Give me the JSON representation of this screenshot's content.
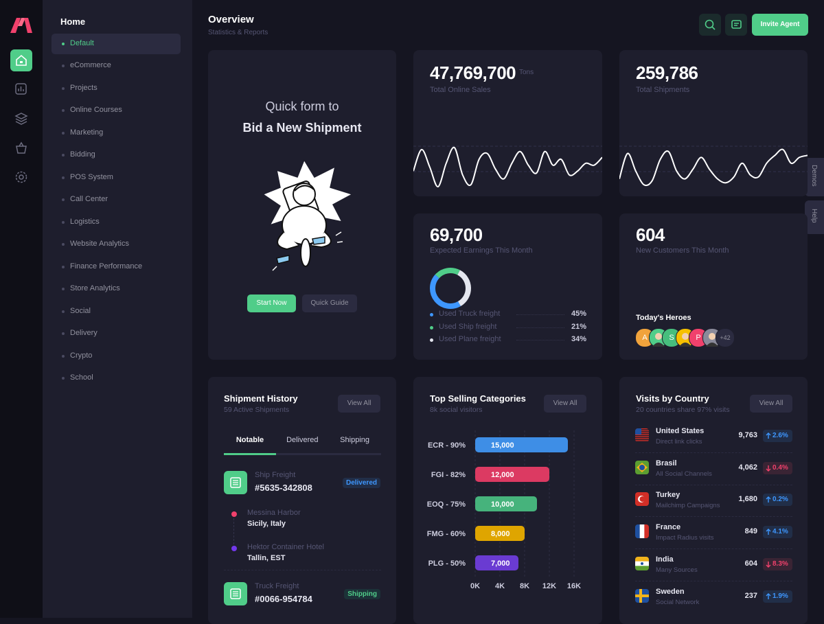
{
  "sidebar": {
    "title": "Home",
    "items": [
      "Default",
      "eCommerce",
      "Projects",
      "Online Courses",
      "Marketing",
      "Bidding",
      "POS System",
      "Call Center",
      "Logistics",
      "Website Analytics",
      "Finance Performance",
      "Store Analytics",
      "Social",
      "Delivery",
      "Crypto",
      "School"
    ]
  },
  "header": {
    "title": "Overview",
    "subtitle": "Statistics & Reports",
    "button": "Invite Agent"
  },
  "side_tabs": [
    "Demos",
    "Help"
  ],
  "quick_form": {
    "line1": "Quick form to",
    "line2": "Bid a New Shipment",
    "primary_button": "Start Now",
    "secondary_button": "Quick Guide"
  },
  "sales_card": {
    "value": "47,769,700",
    "unit": "Tons",
    "label": "Total Online Sales",
    "chart_data": {
      "type": "line",
      "values": [
        40,
        95,
        50,
        0,
        60,
        100,
        30,
        5,
        70,
        85,
        45,
        20,
        60,
        90,
        55,
        35,
        90,
        55,
        70,
        30,
        40,
        60,
        55,
        75
      ],
      "ylim": [
        0,
        100
      ],
      "color": "#ffffff"
    }
  },
  "shipments_card": {
    "value": "259,786",
    "label": "Total Shipments",
    "chart_data": {
      "type": "line",
      "values": [
        20,
        85,
        40,
        5,
        15,
        70,
        90,
        40,
        20,
        45,
        75,
        45,
        20,
        10,
        25,
        60,
        30,
        25,
        60,
        80,
        95,
        60,
        75,
        80
      ],
      "ylim": [
        0,
        100
      ],
      "color": "#ffffff"
    }
  },
  "earnings_card": {
    "value": "69,700",
    "label": "Expected Earnings This Month",
    "chart_data": {
      "type": "donut",
      "categories": [
        "Used Truck freight",
        "Used Ship freight",
        "Used Plane freight"
      ],
      "values": [
        45,
        21,
        34
      ],
      "value_labels": [
        "45%",
        "21%",
        "34%"
      ],
      "colors": [
        "#3e97ff",
        "#50cd89",
        "#e4e6ef"
      ]
    }
  },
  "customers_card": {
    "value": "604",
    "label": "New Customers This Month",
    "heroes_title": "Today's Heroes",
    "hero_initials": [
      "A",
      "S",
      "P"
    ],
    "more": "+42"
  },
  "shipment_history": {
    "title": "Shipment History",
    "subtitle": "59 Active Shipments",
    "button": "View All",
    "tabs": [
      "Notable",
      "Delivered",
      "Shipping"
    ],
    "items": [
      {
        "type": "Ship Freight",
        "id": "#5635-342808",
        "status": "Delivered",
        "stops": [
          {
            "place": "Messina Harbor",
            "city": "Sicily, Italy"
          },
          {
            "place": "Hektor Container Hotel",
            "city": "Tallin, EST"
          }
        ]
      },
      {
        "type": "Truck Freight",
        "id": "#0066-954784",
        "status": "Shipping"
      }
    ]
  },
  "top_selling": {
    "title": "Top Selling Categories",
    "subtitle": "8k social visitors",
    "button": "View All",
    "chart_data": {
      "type": "bar",
      "orientation": "horizontal",
      "categories": [
        "ECR - 90%",
        "FGI - 82%",
        "EOQ - 75%",
        "FMG - 60%",
        "PLG - 50%"
      ],
      "values": [
        15000,
        12000,
        10000,
        8000,
        7000
      ],
      "value_labels": [
        "15,000",
        "12,000",
        "10,000",
        "8,000",
        "7,000"
      ],
      "colors": [
        "#3e8ee6",
        "#dc3a62",
        "#46b37c",
        "#dfa500",
        "#6a3bd2"
      ],
      "xlim": [
        0,
        16000
      ],
      "xticks": [
        {
          "value": 0,
          "label": "0K"
        },
        {
          "value": 4000,
          "label": "4K"
        },
        {
          "value": 8000,
          "label": "8K"
        },
        {
          "value": 12000,
          "label": "12K"
        },
        {
          "value": 16000,
          "label": "16K"
        }
      ],
      "grid": true
    }
  },
  "visits": {
    "title": "Visits by Country",
    "subtitle": "20 countries share 97% visits",
    "button": "View All",
    "rows": [
      {
        "country": "United States",
        "source": "Direct link clicks",
        "visits": "9,763",
        "change": "2.6%",
        "trend": "up"
      },
      {
        "country": "Brasil",
        "source": "All Social Channels",
        "visits": "4,062",
        "change": "0.4%",
        "trend": "down"
      },
      {
        "country": "Turkey",
        "source": "Mailchimp Campaigns",
        "visits": "1,680",
        "change": "0.2%",
        "trend": "up"
      },
      {
        "country": "France",
        "source": "Impact Radius visits",
        "visits": "849",
        "change": "4.1%",
        "trend": "up"
      },
      {
        "country": "India",
        "source": "Many Sources",
        "visits": "604",
        "change": "8.3%",
        "trend": "down"
      },
      {
        "country": "Sweden",
        "source": "Social Network",
        "visits": "237",
        "change": "1.9%",
        "trend": "up"
      }
    ]
  }
}
